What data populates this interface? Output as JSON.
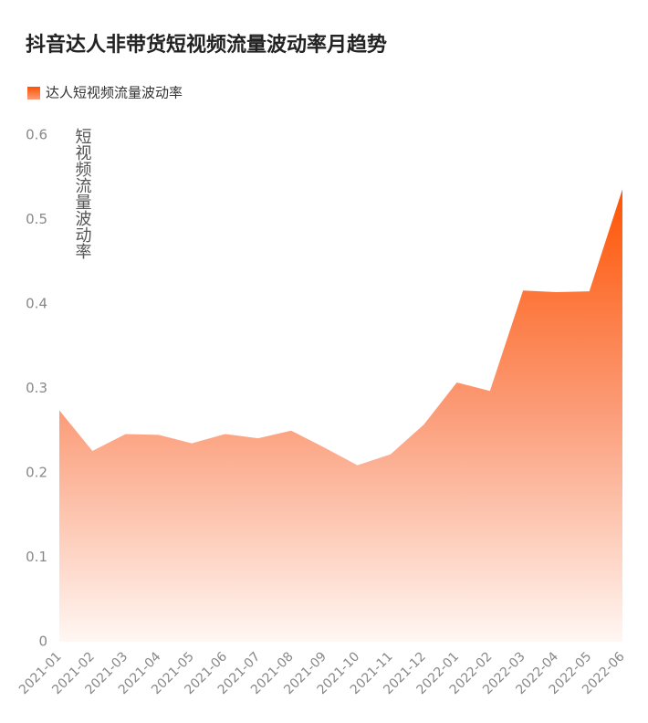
{
  "chart_data": {
    "type": "area",
    "title": "抖音达人非带货短视频流量波动率月趋势",
    "y_label": "短视频流量波动率",
    "categories": [
      "2021-01",
      "2021-02",
      "2021-03",
      "2021-04",
      "2021-05",
      "2021-06",
      "2021-07",
      "2021-08",
      "2021-09",
      "2021-10",
      "2021-11",
      "2021-12",
      "2022-01",
      "2022-02",
      "2022-03",
      "2022-04",
      "2022-05",
      "2022-06"
    ],
    "series": [
      {
        "name": "达人短视频流量波动率",
        "color": "#ff5200",
        "values": [
          0.274,
          0.226,
          0.246,
          0.245,
          0.235,
          0.246,
          0.241,
          0.25,
          0.23,
          0.209,
          0.222,
          0.257,
          0.307,
          0.297,
          0.416,
          0.414,
          0.415,
          0.536
        ]
      }
    ],
    "ylim": [
      0,
      0.6
    ],
    "yticks": [
      0,
      0.1,
      0.2,
      0.3,
      0.4,
      0.5,
      0.6
    ],
    "grid": false,
    "legend": "top-left"
  }
}
